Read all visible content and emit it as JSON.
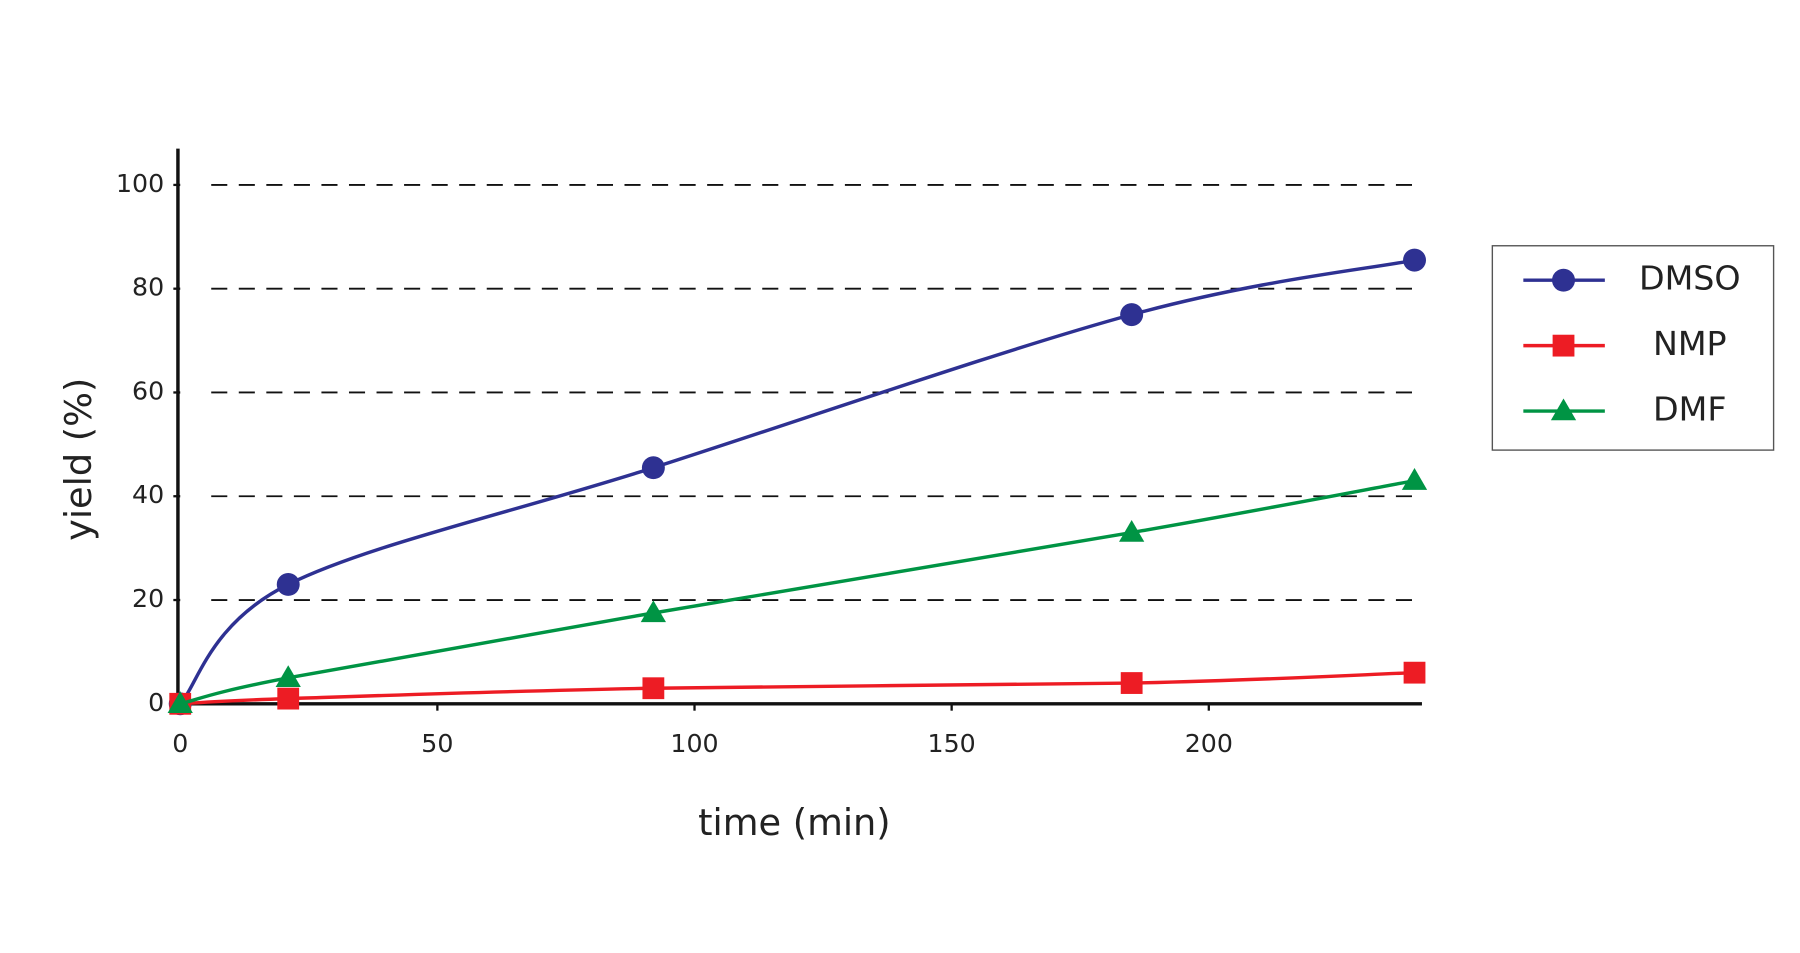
{
  "chart_data": {
    "type": "line",
    "xlabel": "time (min)",
    "ylabel": "yield (%)",
    "x": [
      0,
      21,
      92,
      185,
      240
    ],
    "series": [
      {
        "name": "DMSO",
        "color": "#2e3192",
        "marker": "circle",
        "values": [
          0,
          23,
          45.5,
          75,
          85.5
        ]
      },
      {
        "name": "NMP",
        "color": "#ed1c24",
        "marker": "square",
        "values": [
          0,
          1,
          3,
          4,
          6
        ]
      },
      {
        "name": "DMF",
        "color": "#009444",
        "marker": "triangle",
        "values": [
          0,
          5,
          17.5,
          33,
          43
        ]
      }
    ],
    "xlim": [
      0,
      241
    ],
    "ylim": [
      0,
      107
    ],
    "xticks": [
      0,
      50,
      100,
      150,
      200
    ],
    "yticks": [
      0,
      20,
      40,
      60,
      80,
      100
    ],
    "grid": true,
    "grid_style": "dashed",
    "legend": "right"
  }
}
